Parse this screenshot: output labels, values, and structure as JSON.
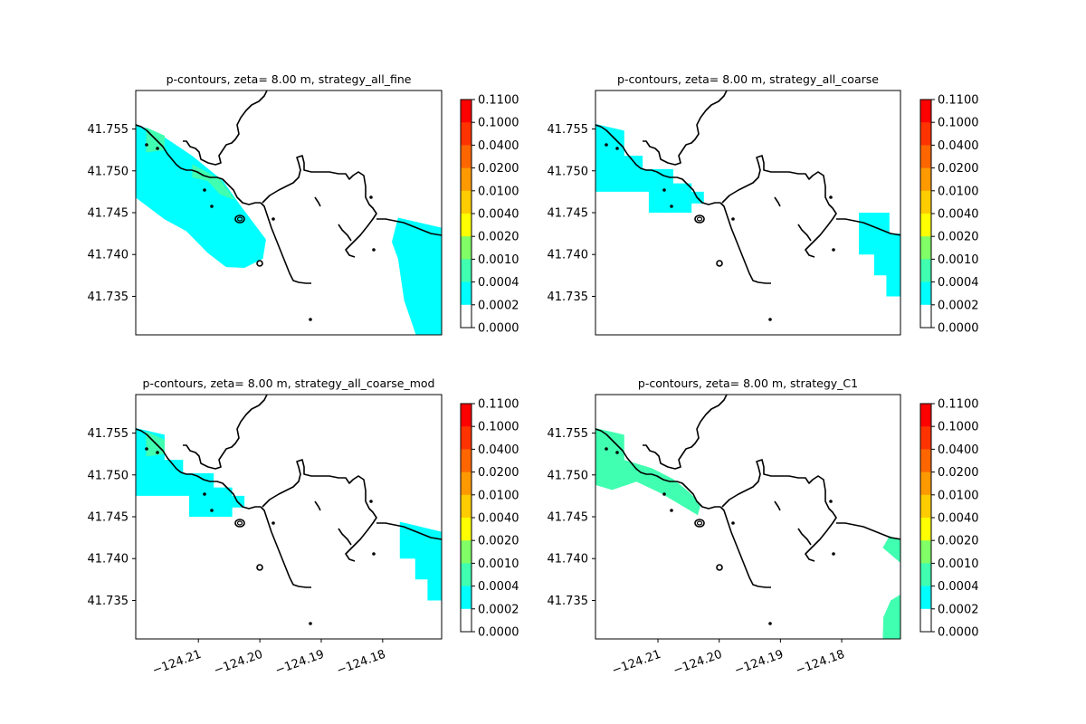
{
  "chart_data": {
    "type": "heatmap",
    "xticks": [
      "−124.21",
      "−124.20",
      "−124.19",
      "−124.18"
    ],
    "xtick_values": [
      -124.21,
      -124.2,
      -124.19,
      -124.18
    ],
    "yticks": [
      "41.755",
      "41.750",
      "41.745",
      "41.740",
      "41.735"
    ],
    "ytick_values": [
      41.755,
      41.75,
      41.745,
      41.74,
      41.735
    ],
    "xlim": [
      -124.2202,
      -124.1704
    ],
    "ylim": [
      41.7304,
      41.7596
    ],
    "colorbar": {
      "ticks": [
        "0.1100",
        "0.1000",
        "0.0400",
        "0.0200",
        "0.0100",
        "0.0040",
        "0.0020",
        "0.0010",
        "0.0004",
        "0.0002",
        "0.0000"
      ],
      "colors": [
        "#ff0000",
        "#ff3300",
        "#ff6600",
        "#ff9900",
        "#ffcc00",
        "#ffff00",
        "#80ff66",
        "#40ffb0",
        "#00ffff",
        "#ffffff"
      ]
    },
    "panels": [
      {
        "title": "p-contours, zeta= 8.00 m, strategy_all_fine",
        "regions": [
          {
            "level": "0.0002-0.0004",
            "color": "#00ffff",
            "polygon": [
              [
                -124.2202,
                41.7556
              ],
              [
                -124.2165,
                41.7545
              ],
              [
                -124.211,
                41.7518
              ],
              [
                -124.206,
                41.7488
              ],
              [
                -124.2035,
                41.7462
              ],
              [
                -124.199,
                41.7418
              ],
              [
                -124.1995,
                41.7395
              ],
              [
                -124.2025,
                41.7384
              ],
              [
                -124.2055,
                41.7385
              ],
              [
                -124.2085,
                41.7402
              ],
              [
                -124.212,
                41.7428
              ],
              [
                -124.2155,
                41.7442
              ],
              [
                -124.2202,
                41.7468
              ]
            ]
          },
          {
            "level": "0.0004-0.0010",
            "color": "#40ffb0",
            "polygon": [
              [
                -124.2185,
                41.7552
              ],
              [
                -124.2155,
                41.7542
              ],
              [
                -124.2155,
                41.7525
              ],
              [
                -124.2185,
                41.7522
              ]
            ]
          },
          {
            "level": "0.0004-0.0010",
            "color": "#40ffb0",
            "polygon": [
              [
                -124.211,
                41.7508
              ],
              [
                -124.2065,
                41.749
              ],
              [
                -124.204,
                41.7465
              ],
              [
                -124.2065,
                41.7472
              ],
              [
                -124.2085,
                41.7488
              ],
              [
                -124.211,
                41.7492
              ]
            ]
          },
          {
            "level": "0.0002-0.0004",
            "color": "#00ffff",
            "polygon": [
              [
                -124.1775,
                41.7444
              ],
              [
                -124.1704,
                41.7432
              ],
              [
                -124.1704,
                41.7302
              ],
              [
                -124.1745,
                41.7302
              ],
              [
                -124.1765,
                41.7345
              ],
              [
                -124.1775,
                41.7395
              ],
              [
                -124.1785,
                41.7415
              ]
            ]
          }
        ]
      },
      {
        "title": "p-contours, zeta= 8.00 m, strategy_all_coarse",
        "regions": [
          {
            "level": "0.0002-0.0004",
            "color": "#00ffff",
            "polygon": [
              [
                -124.2202,
                41.7556
              ],
              [
                -124.2155,
                41.7548
              ],
              [
                -124.2155,
                41.7518
              ],
              [
                -124.2125,
                41.7518
              ],
              [
                -124.2125,
                41.7502
              ],
              [
                -124.2075,
                41.7502
              ],
              [
                -124.2075,
                41.7485
              ],
              [
                -124.2045,
                41.7485
              ],
              [
                -124.2045,
                41.7475
              ],
              [
                -124.2025,
                41.7475
              ],
              [
                -124.2025,
                41.7461
              ],
              [
                -124.2045,
                41.7461
              ],
              [
                -124.2045,
                41.745
              ],
              [
                -124.2115,
                41.745
              ],
              [
                -124.2115,
                41.7475
              ],
              [
                -124.2202,
                41.7475
              ]
            ]
          },
          {
            "level": "0.0002-0.0004",
            "color": "#00ffff",
            "polygon": [
              [
                -124.1772,
                41.745
              ],
              [
                -124.1722,
                41.745
              ],
              [
                -124.1722,
                41.7425
              ],
              [
                -124.1704,
                41.7425
              ],
              [
                -124.1704,
                41.735
              ],
              [
                -124.1727,
                41.735
              ],
              [
                -124.1727,
                41.7375
              ],
              [
                -124.1747,
                41.7375
              ],
              [
                -124.1747,
                41.74
              ],
              [
                -124.1772,
                41.74
              ]
            ]
          }
        ]
      },
      {
        "title": "p-contours, zeta= 8.00 m, strategy_all_coarse_mod",
        "regions": [
          {
            "level": "0.0002-0.0004",
            "color": "#00ffff",
            "polygon": [
              [
                -124.2202,
                41.7556
              ],
              [
                -124.2155,
                41.7548
              ],
              [
                -124.2155,
                41.7518
              ],
              [
                -124.2125,
                41.7518
              ],
              [
                -124.2125,
                41.7502
              ],
              [
                -124.2075,
                41.7502
              ],
              [
                -124.2075,
                41.7485
              ],
              [
                -124.2045,
                41.7485
              ],
              [
                -124.2045,
                41.7475
              ],
              [
                -124.2025,
                41.7475
              ],
              [
                -124.2025,
                41.7461
              ],
              [
                -124.2045,
                41.7461
              ],
              [
                -124.2045,
                41.745
              ],
              [
                -124.2115,
                41.745
              ],
              [
                -124.2115,
                41.7475
              ],
              [
                -124.2202,
                41.7475
              ]
            ]
          },
          {
            "level": "0.0002-0.0004",
            "color": "#00ffff",
            "polygon": [
              [
                -124.1772,
                41.7444
              ],
              [
                -124.1704,
                41.7432
              ],
              [
                -124.1704,
                41.735
              ],
              [
                -124.1727,
                41.735
              ],
              [
                -124.1727,
                41.7375
              ],
              [
                -124.1747,
                41.7375
              ],
              [
                -124.1747,
                41.74
              ],
              [
                -124.1772,
                41.74
              ]
            ]
          },
          {
            "level": "0.0004-0.0010",
            "color": "#40ffb0",
            "polygon": [
              [
                -124.2185,
                41.7552
              ],
              [
                -124.2155,
                41.7542
              ],
              [
                -124.2155,
                41.7525
              ],
              [
                -124.2185,
                41.7522
              ]
            ]
          }
        ]
      },
      {
        "title": "p-contours, zeta= 8.00 m, strategy_C1",
        "regions": [
          {
            "level": "0.0004-0.0010",
            "color": "#40ffb0",
            "polygon": [
              [
                -124.2202,
                41.7556
              ],
              [
                -124.2155,
                41.7548
              ],
              [
                -124.2155,
                41.7518
              ],
              [
                -124.211,
                41.7508
              ],
              [
                -124.2075,
                41.7495
              ],
              [
                -124.205,
                41.748
              ],
              [
                -124.203,
                41.7465
              ],
              [
                -124.2035,
                41.7452
              ],
              [
                -124.2065,
                41.7465
              ],
              [
                -124.2095,
                41.7478
              ],
              [
                -124.2135,
                41.7492
              ],
              [
                -124.2175,
                41.7482
              ],
              [
                -124.2202,
                41.7488
              ]
            ]
          },
          {
            "level": "0.0004-0.0010",
            "color": "#40ffb0",
            "polygon": [
              [
                -124.1733,
                41.7413
              ],
              [
                -124.1704,
                41.7395
              ],
              [
                -124.1704,
                41.7422
              ],
              [
                -124.1722,
                41.7427
              ]
            ]
          },
          {
            "level": "0.0004-0.0010",
            "color": "#40ffb0",
            "polygon": [
              [
                -124.1733,
                41.7302
              ],
              [
                -124.1704,
                41.7302
              ],
              [
                -124.1704,
                41.7357
              ],
              [
                -124.172,
                41.735
              ],
              [
                -124.1732,
                41.733
              ]
            ]
          }
        ]
      }
    ]
  }
}
